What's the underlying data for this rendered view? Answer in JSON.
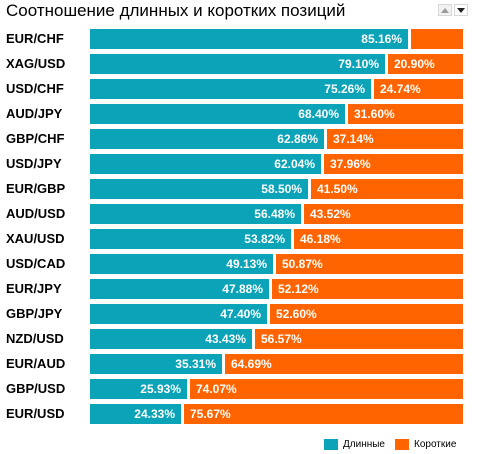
{
  "chart_data": {
    "type": "bar",
    "orientation": "horizontal",
    "stacked": true,
    "title": "Соотношение длинных и коротких позиций",
    "categories": [
      "EUR/CHF",
      "XAG/USD",
      "USD/CHF",
      "AUD/JPY",
      "GBP/CHF",
      "USD/JPY",
      "EUR/GBP",
      "AUD/USD",
      "XAU/USD",
      "USD/CAD",
      "EUR/JPY",
      "GBP/JPY",
      "NZD/USD",
      "EUR/AUD",
      "GBP/USD",
      "EUR/USD"
    ],
    "series": [
      {
        "name": "Длинные",
        "color": "#0aa3b8",
        "values": [
          85.16,
          79.1,
          75.26,
          68.4,
          62.86,
          62.04,
          58.5,
          56.48,
          53.82,
          49.13,
          47.88,
          47.4,
          43.43,
          35.31,
          25.93,
          24.33
        ]
      },
      {
        "name": "Короткие",
        "color": "#ff6400",
        "values": [
          14.84,
          20.9,
          24.74,
          31.6,
          37.14,
          37.96,
          41.5,
          43.52,
          46.18,
          50.87,
          52.12,
          52.6,
          56.57,
          64.69,
          74.07,
          75.67
        ]
      }
    ],
    "data_labels": {
      "long": [
        "85.16%",
        "79.10%",
        "75.26%",
        "68.40%",
        "62.86%",
        "62.04%",
        "58.50%",
        "56.48%",
        "53.82%",
        "49.13%",
        "47.88%",
        "47.40%",
        "43.43%",
        "35.31%",
        "25.93%",
        "24.33%"
      ],
      "short": [
        "",
        "20.90%",
        "24.74%",
        "31.60%",
        "37.14%",
        "37.96%",
        "41.50%",
        "43.52%",
        "46.18%",
        "50.87%",
        "52.12%",
        "52.60%",
        "56.57%",
        "64.69%",
        "74.07%",
        "75.67%"
      ]
    },
    "xlim": [
      0,
      100
    ],
    "legend_position": "bottom-right",
    "grid": false
  },
  "controls": {
    "up_icon": "triangle-up-icon",
    "down_icon": "triangle-down-icon"
  }
}
